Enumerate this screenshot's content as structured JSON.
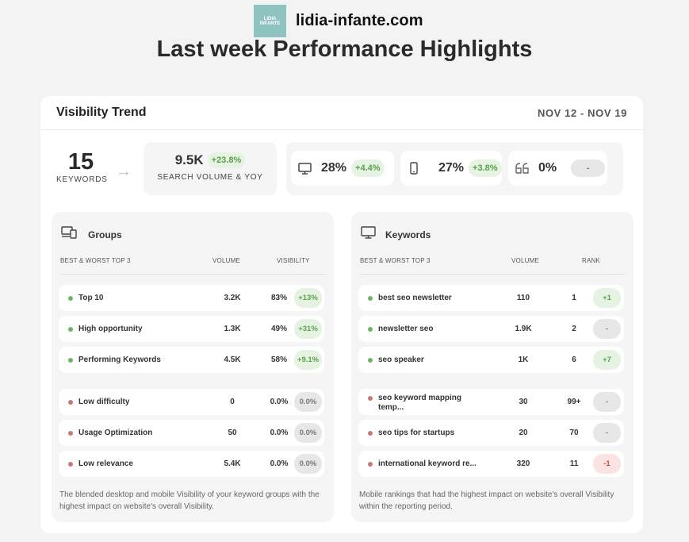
{
  "brand": {
    "logo_line1": "LIDIA",
    "logo_line2": "INFANTE",
    "name": "lidia-infante.com"
  },
  "page_title": "Last week Performance Highlights",
  "card": {
    "title": "Visibility Trend",
    "date_range": "NOV 12 - NOV 19"
  },
  "summary": {
    "keywords_count": "15",
    "keywords_label": "KEYWORDS",
    "arrow": "→",
    "search_volume": "9.5K",
    "search_volume_change": "+23.8%",
    "search_volume_label": "SEARCH VOLUME & YOY"
  },
  "devices": [
    {
      "icon": "desktop-icon",
      "value": "28%",
      "change": "+4.4%"
    },
    {
      "icon": "mobile-icon",
      "value": "27%",
      "change": "+3.8%"
    },
    {
      "icon": "quote-icon",
      "value": "0%",
      "change": "-"
    }
  ],
  "groups": {
    "title": "Groups",
    "col_label": "BEST & WORST TOP 3",
    "col_volume": "VOLUME",
    "col_visibility": "VISIBILITY",
    "best": [
      {
        "name": "Top 10",
        "volume": "3.2K",
        "visibility": "83%",
        "change": "+13%"
      },
      {
        "name": "High opportunity",
        "volume": "1.3K",
        "visibility": "49%",
        "change": "+31%"
      },
      {
        "name": "Performing Keywords",
        "volume": "4.5K",
        "visibility": "58%",
        "change": "+9.1%"
      }
    ],
    "worst": [
      {
        "name": "Low difficulty",
        "volume": "0",
        "visibility": "0.0%",
        "change": "0.0%"
      },
      {
        "name": "Usage Optimization",
        "volume": "50",
        "visibility": "0.0%",
        "change": "0.0%"
      },
      {
        "name": "Low relevance",
        "volume": "5.4K",
        "visibility": "0.0%",
        "change": "0.0%"
      }
    ],
    "footnote": "The blended desktop and mobile Visibility of your keyword groups with the highest impact on website's overall Visibility."
  },
  "keywords": {
    "title": "Keywords",
    "col_label": "BEST & WORST TOP 3",
    "col_volume": "VOLUME",
    "col_rank": "RANK",
    "best": [
      {
        "name": "best seo newsletter",
        "volume": "110",
        "rank": "1",
        "change": "+1"
      },
      {
        "name": "newsletter seo",
        "volume": "1.9K",
        "rank": "2",
        "change": "-"
      },
      {
        "name": "seo speaker",
        "volume": "1K",
        "rank": "6",
        "change": "+7"
      }
    ],
    "worst": [
      {
        "name": "seo keyword mapping temp...",
        "volume": "30",
        "rank": "99+",
        "change": "-"
      },
      {
        "name": "seo tips for startups",
        "volume": "20",
        "rank": "70",
        "change": "-"
      },
      {
        "name": "international keyword re...",
        "volume": "320",
        "rank": "11",
        "change": "-1"
      }
    ],
    "footnote": "Mobile rankings that had the highest impact on website's overall Visibility within the reporting period."
  }
}
